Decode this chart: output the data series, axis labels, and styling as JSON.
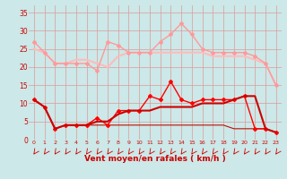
{
  "x": [
    0,
    1,
    2,
    3,
    4,
    5,
    6,
    7,
    8,
    9,
    10,
    11,
    12,
    13,
    14,
    15,
    16,
    17,
    18,
    19,
    20,
    21,
    22,
    23
  ],
  "r1": [
    27,
    24,
    21,
    21,
    21,
    21,
    19,
    27,
    26,
    24,
    24,
    24,
    27,
    29,
    32,
    29,
    25,
    24,
    24,
    24,
    24,
    23,
    21,
    15
  ],
  "r2": [
    25,
    24,
    21,
    21,
    22,
    22,
    21,
    20,
    23,
    24,
    24,
    24,
    24,
    24,
    24,
    24,
    24,
    23,
    23,
    23,
    23,
    22,
    21,
    15
  ],
  "red1": [
    11,
    9,
    3,
    4,
    4,
    4,
    6,
    4,
    8,
    8,
    8,
    12,
    11,
    16,
    11,
    10,
    11,
    11,
    11,
    11,
    12,
    3,
    3,
    2
  ],
  "red2": [
    11,
    9,
    3,
    4,
    4,
    4,
    5,
    5,
    7,
    8,
    8,
    8,
    9,
    9,
    9,
    9,
    10,
    10,
    10,
    11,
    12,
    12,
    3,
    2
  ],
  "red3": [
    11,
    9,
    3,
    4,
    4,
    4,
    4,
    4,
    4,
    4,
    4,
    4,
    4,
    4,
    4,
    4,
    4,
    4,
    4,
    3,
    3,
    3,
    3,
    2
  ],
  "bg_color": "#cce8e8",
  "grid_color": "#dd9999",
  "r1_color": "#ff9999",
  "r2_color": "#ffbbbb",
  "red1_color": "#ff0000",
  "red2_color": "#cc0000",
  "red3_color": "#bb1100",
  "xlabel": "Vent moyen/en rafales ( km/h )",
  "tick_color": "#cc0000",
  "ylim": [
    0,
    37
  ],
  "yticks": [
    0,
    5,
    10,
    15,
    20,
    25,
    30,
    35
  ]
}
